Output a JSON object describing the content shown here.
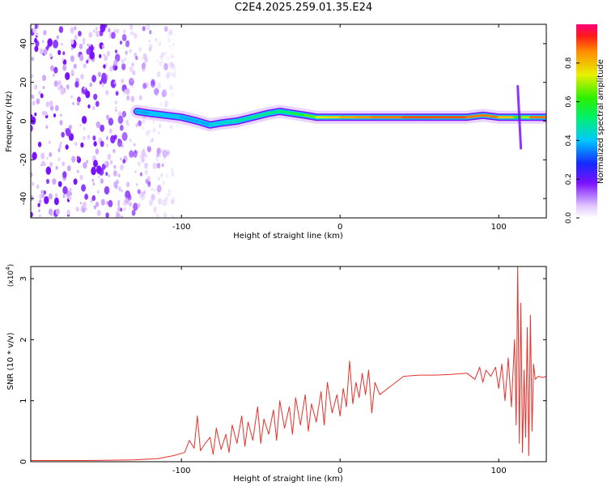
{
  "figure": {
    "title": "C2E4.2025.259.01.35.E24"
  },
  "colorbar": {
    "label": "Normalized spectral amplitude",
    "range": [
      0.0,
      1.0
    ],
    "ticks": [
      "0.0",
      "0.2",
      "0.4",
      "0.6",
      "0.8"
    ],
    "tick_values": [
      0.0,
      0.2,
      0.4,
      0.6,
      0.8
    ]
  },
  "chart_data": [
    {
      "type": "heatmap",
      "name": "spectrogram",
      "xlabel": "Height of straight line (km)",
      "ylabel": "Frequency (Hz)",
      "xlim": [
        -195,
        130
      ],
      "ylim": [
        -50,
        50
      ],
      "xticks": [
        -100,
        0,
        100
      ],
      "xtick_labels": [
        "-100",
        "0",
        "100"
      ],
      "yticks": [
        -40,
        -20,
        0,
        20,
        40
      ],
      "ytick_labels": [
        "-40",
        "-20",
        "0",
        "20",
        "40"
      ],
      "ridge": {
        "x": [
          -128,
          -120,
          -110,
          -100,
          -90,
          -82,
          -75,
          -65,
          -55,
          -45,
          -38,
          -30,
          -22,
          -15,
          -8,
          0,
          10,
          20,
          40,
          60,
          80,
          90,
          100,
          110,
          115,
          120,
          130
        ],
        "freq": [
          5,
          4,
          3,
          2,
          0,
          -2,
          -1,
          0,
          2,
          4,
          5,
          4,
          3,
          2,
          2,
          2,
          2,
          2,
          2,
          2,
          2,
          3,
          2,
          2,
          2,
          2,
          2
        ],
        "amplitude": [
          0.35,
          0.4,
          0.4,
          0.4,
          0.35,
          0.4,
          0.45,
          0.45,
          0.5,
          0.5,
          0.5,
          0.55,
          0.6,
          0.7,
          0.75,
          0.8,
          0.85,
          0.85,
          0.9,
          0.9,
          0.9,
          0.85,
          0.9,
          0.7,
          0.55,
          0.85,
          0.9
        ]
      },
      "noise_region_x": [
        -195,
        -112
      ]
    },
    {
      "type": "line",
      "name": "snr",
      "xlabel": "Height of straight line (km)",
      "ylabel": "SNR (10 * v/v)",
      "y_multiplier_label": "(x10",
      "y_multiplier_exp": "4",
      "y_multiplier_close": ")",
      "xlim": [
        -195,
        130
      ],
      "ylim": [
        0,
        3.2
      ],
      "xticks": [
        -100,
        0,
        100
      ],
      "xtick_labels": [
        "-100",
        "0",
        "100"
      ],
      "yticks": [
        0,
        1,
        2,
        3
      ],
      "ytick_labels": [
        "0",
        "1",
        "2",
        "3"
      ],
      "series": [
        {
          "name": "SNR",
          "color": "#e8302a",
          "x": [
            -195,
            -160,
            -130,
            -115,
            -105,
            -98,
            -95,
            -92,
            -90,
            -88,
            -85,
            -82,
            -80,
            -78,
            -75,
            -72,
            -70,
            -68,
            -65,
            -62,
            -60,
            -58,
            -55,
            -52,
            -50,
            -48,
            -45,
            -42,
            -40,
            -38,
            -35,
            -32,
            -30,
            -28,
            -25,
            -22,
            -20,
            -18,
            -15,
            -12,
            -10,
            -8,
            -5,
            -2,
            0,
            2,
            4,
            6,
            8,
            10,
            12,
            14,
            16,
            18,
            20,
            22,
            25,
            30,
            35,
            40,
            50,
            60,
            70,
            80,
            85,
            88,
            90,
            92,
            95,
            98,
            100,
            102,
            104,
            106,
            108,
            110,
            111,
            112,
            113,
            114,
            115,
            116,
            117,
            118,
            119,
            120,
            121,
            122,
            123,
            125,
            128,
            130
          ],
          "values": [
            0.02,
            0.02,
            0.03,
            0.05,
            0.1,
            0.15,
            0.35,
            0.22,
            0.75,
            0.18,
            0.3,
            0.4,
            0.12,
            0.55,
            0.2,
            0.45,
            0.15,
            0.6,
            0.3,
            0.75,
            0.25,
            0.65,
            0.35,
            0.9,
            0.3,
            0.7,
            0.45,
            0.85,
            0.35,
            1.0,
            0.55,
            0.9,
            0.45,
            1.05,
            0.6,
            1.1,
            0.5,
            0.95,
            0.65,
            1.15,
            0.6,
            1.3,
            0.8,
            1.1,
            0.75,
            1.2,
            0.9,
            1.65,
            0.95,
            1.3,
            1.05,
            1.45,
            1.1,
            1.5,
            0.8,
            1.3,
            1.1,
            1.2,
            1.3,
            1.4,
            1.42,
            1.42,
            1.43,
            1.45,
            1.35,
            1.55,
            1.3,
            1.5,
            1.4,
            1.55,
            1.2,
            1.6,
            1.0,
            1.7,
            0.9,
            2.0,
            0.6,
            3.2,
            0.3,
            2.6,
            0.15,
            1.5,
            0.4,
            2.2,
            0.1,
            2.4,
            0.5,
            1.6,
            1.35,
            1.4,
            1.38,
            1.4
          ]
        }
      ]
    }
  ]
}
